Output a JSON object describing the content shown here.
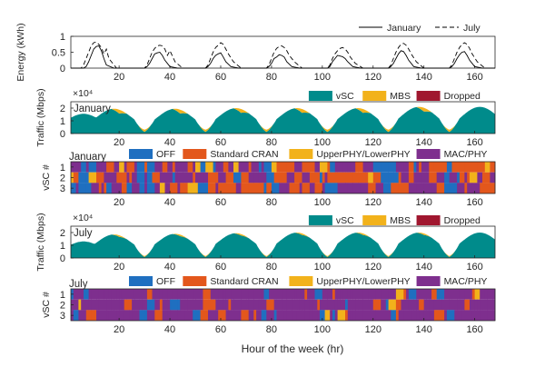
{
  "figure": {
    "xlabel": "Hour of the week (hr)"
  },
  "chart_data": [
    {
      "id": "energy",
      "type": "line",
      "title": "",
      "ylabel": "Energy (kWh)",
      "xlim": [
        1,
        168
      ],
      "ylim": [
        0,
        1
      ],
      "yticks": [
        0,
        0.5,
        1
      ],
      "xticks": [
        20,
        40,
        60,
        80,
        100,
        120,
        140,
        160
      ],
      "legend": {
        "placement": "top-right",
        "orientation": "horizontal"
      },
      "series": [
        {
          "name": "January",
          "style": "solid",
          "x": [
            1,
            6,
            7,
            8,
            9,
            10,
            11,
            12,
            13,
            14,
            15,
            18,
            27,
            30,
            31,
            32,
            33,
            34,
            35,
            36,
            37,
            38,
            40,
            43,
            51,
            54,
            55,
            56,
            57,
            58,
            59,
            60,
            61,
            62,
            64,
            67,
            75,
            78,
            79,
            80,
            81,
            82,
            83,
            84,
            85,
            86,
            88,
            91,
            99,
            102,
            103,
            104,
            105,
            106,
            107,
            108,
            109,
            110,
            112,
            115,
            123,
            126,
            127,
            128,
            129,
            130,
            131,
            132,
            133,
            134,
            136,
            139,
            147,
            150,
            151,
            152,
            153,
            154,
            155,
            156,
            157,
            158,
            160,
            163,
            168
          ],
          "y": [
            0,
            0,
            0.05,
            0.2,
            0.4,
            0.6,
            0.68,
            0.7,
            0.55,
            0.3,
            0.1,
            0,
            0,
            0,
            0.05,
            0.15,
            0.3,
            0.45,
            0.48,
            0.5,
            0.4,
            0.25,
            0.05,
            0,
            0,
            0,
            0.05,
            0.15,
            0.3,
            0.4,
            0.45,
            0.48,
            0.35,
            0.2,
            0.05,
            0,
            0,
            0,
            0.05,
            0.15,
            0.3,
            0.35,
            0.42,
            0.4,
            0.35,
            0.2,
            0.05,
            0,
            0,
            0,
            0.05,
            0.2,
            0.3,
            0.4,
            0.38,
            0.36,
            0.3,
            0.2,
            0.05,
            0,
            0,
            0,
            0.05,
            0.15,
            0.3,
            0.45,
            0.55,
            0.52,
            0.4,
            0.25,
            0.05,
            0,
            0,
            0,
            0.05,
            0.15,
            0.3,
            0.42,
            0.5,
            0.52,
            0.4,
            0.25,
            0.05,
            0,
            0
          ]
        },
        {
          "name": "July",
          "style": "dashed",
          "x": [
            1,
            5,
            6,
            7,
            8,
            9,
            10,
            11,
            12,
            13,
            14,
            15,
            16,
            19,
            27,
            30,
            31,
            32,
            33,
            34,
            35,
            36,
            37,
            38,
            39,
            40,
            42,
            45,
            51,
            54,
            55,
            56,
            57,
            58,
            59,
            60,
            61,
            62,
            63,
            65,
            68,
            75,
            78,
            79,
            80,
            81,
            82,
            83,
            84,
            85,
            86,
            87,
            89,
            92,
            99,
            102,
            103,
            104,
            105,
            106,
            107,
            108,
            109,
            110,
            111,
            113,
            116,
            123,
            126,
            127,
            128,
            129,
            130,
            131,
            132,
            133,
            134,
            135,
            137,
            140,
            147,
            150,
            151,
            152,
            153,
            154,
            155,
            156,
            157,
            158,
            159,
            161,
            164,
            168
          ],
          "y": [
            0,
            0,
            0.1,
            0.3,
            0.5,
            0.7,
            0.8,
            0.82,
            0.75,
            0.65,
            0.45,
            0.6,
            0.3,
            0,
            0,
            0,
            0.1,
            0.3,
            0.5,
            0.62,
            0.7,
            0.72,
            0.7,
            0.6,
            0.4,
            0.55,
            0.2,
            0,
            0,
            0,
            0.1,
            0.3,
            0.5,
            0.65,
            0.72,
            0.8,
            0.75,
            0.6,
            0.45,
            0.2,
            0,
            0,
            0,
            0.1,
            0.3,
            0.5,
            0.62,
            0.68,
            0.7,
            0.65,
            0.55,
            0.4,
            0.2,
            0,
            0,
            0,
            0.1,
            0.3,
            0.45,
            0.55,
            0.62,
            0.65,
            0.6,
            0.5,
            0.35,
            0.15,
            0,
            0,
            0,
            0.1,
            0.3,
            0.5,
            0.65,
            0.75,
            0.78,
            0.72,
            0.6,
            0.45,
            0.2,
            0,
            0,
            0,
            0.1,
            0.3,
            0.5,
            0.65,
            0.75,
            0.8,
            0.75,
            0.62,
            0.45,
            0.2,
            0,
            0
          ]
        }
      ]
    },
    {
      "id": "traffic-january",
      "type": "area",
      "title": "January",
      "ylabel": "Traffic (Mbps)",
      "exponent_label": "×10⁴",
      "xlim": [
        1,
        168
      ],
      "ylim": [
        0,
        2.5
      ],
      "yticks": [
        0,
        1,
        2
      ],
      "xticks": [
        20,
        40,
        60,
        80,
        100,
        120,
        140,
        160
      ],
      "legend": {
        "placement": "top-right",
        "orientation": "horizontal"
      },
      "shape": {
        "peak_hours": [
          6,
          18,
          42,
          66,
          90,
          114,
          138,
          162
        ],
        "peak_values": [
          1.55,
          1.95,
          1.95,
          2.0,
          2.0,
          2.0,
          2.1,
          2.1
        ],
        "night_hours": [
          30,
          54,
          78,
          102,
          126,
          150
        ],
        "night_min": 0.3,
        "rise_hours": [
          20,
          44,
          68,
          92,
          116,
          140
        ],
        "mbs_extra": 0.3
      },
      "series": [
        {
          "name": "vSC",
          "color": "#008b8b"
        },
        {
          "name": "MBS",
          "color": "#f2b21b"
        },
        {
          "name": "Dropped",
          "color": "#a0172f"
        }
      ]
    },
    {
      "id": "states-january",
      "type": "heatmap",
      "title": "January",
      "ylabel": "vSC #",
      "rows": [
        "1",
        "2",
        "3"
      ],
      "xlim": [
        1,
        168
      ],
      "xticks": [
        20,
        40,
        60,
        80,
        100,
        120,
        140,
        160
      ],
      "legend": {
        "placement": "top-right",
        "orientation": "horizontal"
      },
      "states": [
        {
          "name": "OFF",
          "color": "#1f6fc0"
        },
        {
          "name": "Standard CRAN",
          "color": "#e3571c"
        },
        {
          "name": "UpperPHY/LowerPHY",
          "color": "#f2b21b"
        },
        {
          "name": "MAC/PHY",
          "color": "#7e2f8e"
        }
      ],
      "seed": 7,
      "mix": {
        "night": [
          0.55,
          0.2,
          0.05,
          0.2
        ],
        "day": [
          0.05,
          0.4,
          0.05,
          0.5
        ]
      }
    },
    {
      "id": "traffic-july",
      "type": "area",
      "title": "July",
      "ylabel": "Traffic (Mbps)",
      "exponent_label": "×10⁴",
      "xlim": [
        1,
        168
      ],
      "ylim": [
        0,
        2.5
      ],
      "yticks": [
        0,
        1,
        2
      ],
      "xticks": [
        20,
        40,
        60,
        80,
        100,
        120,
        140,
        160
      ],
      "legend": {
        "placement": "top-right",
        "orientation": "horizontal"
      },
      "shape": {
        "peak_hours": [
          6,
          18,
          42,
          66,
          90,
          114,
          138,
          162
        ],
        "peak_values": [
          1.3,
          1.85,
          1.9,
          1.95,
          2.0,
          2.0,
          2.0,
          2.0
        ],
        "night_hours": [
          30,
          54,
          78,
          102,
          126,
          150
        ],
        "night_min": 0.15,
        "rise_hours": [
          20,
          44,
          68,
          92,
          116,
          140
        ],
        "mbs_extra": 0.12
      },
      "series": [
        {
          "name": "vSC",
          "color": "#008b8b"
        },
        {
          "name": "MBS",
          "color": "#f2b21b"
        },
        {
          "name": "Dropped",
          "color": "#a0172f"
        }
      ]
    },
    {
      "id": "states-july",
      "type": "heatmap",
      "title": "July",
      "ylabel": "vSC #",
      "rows": [
        "1",
        "2",
        "3"
      ],
      "xlim": [
        1,
        168
      ],
      "xticks": [
        20,
        40,
        60,
        80,
        100,
        120,
        140,
        160
      ],
      "legend": {
        "placement": "top-right",
        "orientation": "horizontal"
      },
      "states": [
        {
          "name": "OFF",
          "color": "#1f6fc0"
        },
        {
          "name": "Standard CRAN",
          "color": "#e3571c"
        },
        {
          "name": "UpperPHY/LowerPHY",
          "color": "#f2b21b"
        },
        {
          "name": "MAC/PHY",
          "color": "#7e2f8e"
        }
      ],
      "seed": 19,
      "mix": {
        "night": [
          0.15,
          0.15,
          0.05,
          0.65
        ],
        "day": [
          0.02,
          0.08,
          0.03,
          0.87
        ]
      }
    }
  ]
}
